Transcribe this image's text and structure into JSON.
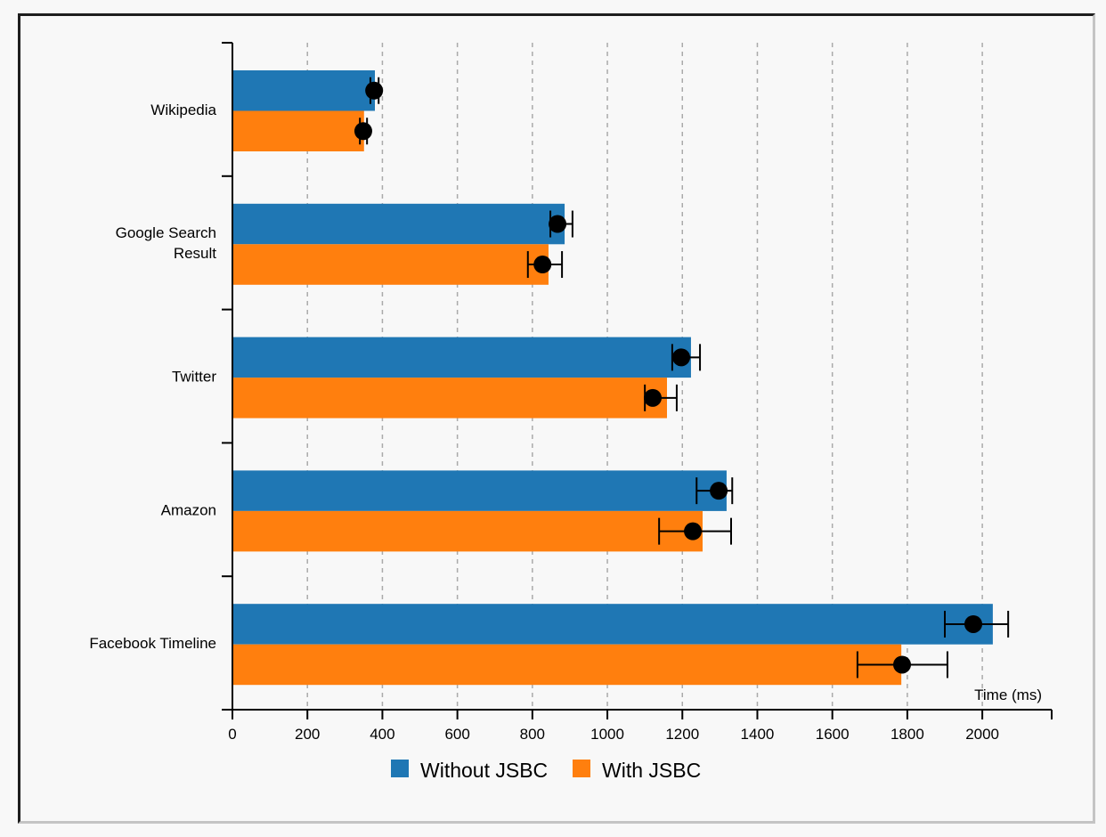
{
  "chart_data": {
    "type": "bar",
    "orientation": "horizontal",
    "title": "",
    "xlabel": "Time (ms)",
    "ylabel": "",
    "xlim": [
      0,
      2185
    ],
    "x_ticks": [
      0,
      200,
      400,
      600,
      800,
      1000,
      1200,
      1400,
      1600,
      1800,
      2000
    ],
    "grid": "vertical dashed",
    "legend_position": "bottom-center",
    "categories": [
      [
        "Wikipedia"
      ],
      [
        "Google Search",
        "Result"
      ],
      [
        "Twitter"
      ],
      [
        "Amazon"
      ],
      [
        "Facebook Timeline"
      ]
    ],
    "series": [
      {
        "name": "Without JSBC",
        "color": "#1f77b4",
        "values": [
          380,
          886,
          1223,
          1318,
          2028
        ],
        "median_points": [
          378,
          867,
          1197,
          1297,
          1976
        ],
        "error_low": [
          368,
          848,
          1173,
          1238,
          1900
        ],
        "error_high": [
          390,
          907,
          1247,
          1333,
          2069
        ]
      },
      {
        "name": "With JSBC",
        "color": "#ff7f0e",
        "values": [
          351,
          843,
          1159,
          1254,
          1784
        ],
        "median_points": [
          349,
          827,
          1121,
          1228,
          1786
        ],
        "error_low": [
          340,
          788,
          1100,
          1138,
          1667
        ],
        "error_high": [
          359,
          879,
          1185,
          1330,
          1907
        ]
      }
    ]
  }
}
